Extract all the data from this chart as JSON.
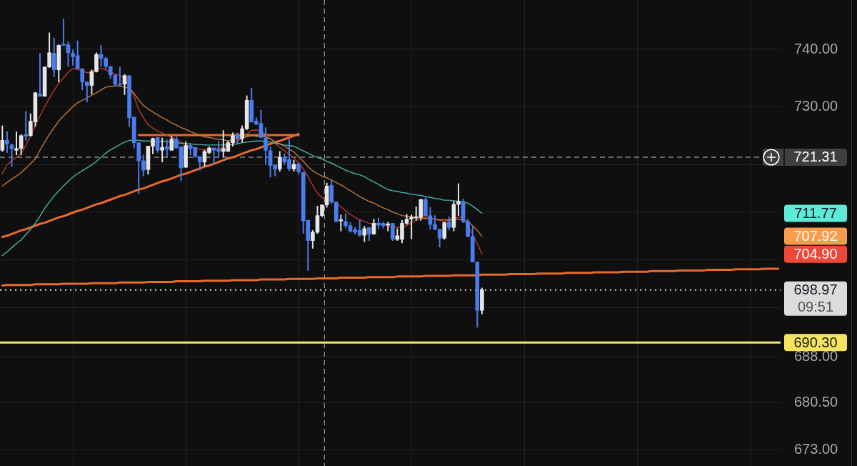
{
  "chart_data": {
    "type": "candlestick",
    "categories": [
      null,
      null,
      null,
      null,
      null,
      null,
      null,
      null,
      null,
      null,
      null,
      null,
      null,
      null,
      null,
      null,
      null,
      null,
      null,
      null,
      null,
      null,
      null,
      null,
      null,
      null,
      null,
      null,
      null,
      null,
      null,
      null,
      null,
      null,
      null,
      null,
      null,
      null,
      null,
      null,
      null,
      null,
      null,
      null,
      null,
      null,
      null,
      null,
      null,
      null,
      null,
      null,
      null,
      null,
      null,
      null,
      null,
      null,
      null,
      null,
      null,
      null,
      null,
      null,
      null,
      null,
      null,
      null,
      null,
      null,
      null,
      null,
      null,
      null,
      null,
      null,
      null,
      null,
      null,
      null,
      null,
      null,
      null,
      null,
      null,
      null,
      null,
      null,
      null,
      null,
      null,
      null,
      null,
      null,
      null,
      null,
      null,
      null,
      null,
      null,
      null,
      null,
      null,
      null,
      null,
      null,
      null,
      null,
      null,
      null,
      null,
      null,
      null,
      null,
      null,
      null,
      null,
      null,
      null,
      null,
      null,
      null,
      null,
      null,
      null,
      null,
      null,
      null,
      null,
      null,
      null,
      null,
      null,
      null,
      null,
      null,
      null,
      null,
      null,
      null,
      null,
      null,
      null,
      null,
      null,
      null,
      null,
      null,
      null,
      null,
      null,
      null,
      null,
      null,
      null,
      null,
      null,
      null,
      null,
      null,
      null,
      null,
      null,
      null,
      null,
      null
    ],
    "ohlc": [
      [
        722.5,
        726.7,
        722.3,
        724.2
      ],
      [
        724.2,
        725.7,
        722.1,
        723.6
      ],
      [
        723.4,
        723.6,
        719.7,
        722.8
      ],
      [
        722.5,
        725.7,
        721.7,
        722.8
      ],
      [
        722.8,
        725.2,
        721.7,
        725.0
      ],
      [
        725.2,
        729.2,
        724.2,
        724.9
      ],
      [
        725.0,
        728.8,
        724.9,
        727.5
      ],
      [
        727.4,
        732.5,
        726.6,
        732.4
      ],
      [
        732.2,
        739.3,
        731.8,
        731.8
      ],
      [
        731.8,
        736.9,
        731.8,
        736.9
      ],
      [
        736.9,
        742.9,
        736.8,
        739.4
      ],
      [
        739.3,
        742.0,
        735.2,
        736.4
      ],
      [
        736.4,
        740.8,
        734.3,
        740.7
      ],
      [
        740.9,
        745.3,
        740.7,
        740.7
      ],
      [
        740.8,
        741.3,
        737.0,
        739.4
      ],
      [
        739.3,
        739.9,
        737.2,
        738.7
      ],
      [
        738.9,
        741.5,
        736.6,
        736.6
      ],
      [
        736.6,
        736.6,
        732.9,
        734.3
      ],
      [
        734.3,
        734.3,
        730.8,
        733.7
      ],
      [
        733.7,
        736.4,
        732.2,
        736.1
      ],
      [
        736.1,
        739.4,
        736.0,
        739.1
      ],
      [
        739.1,
        740.7,
        737.0,
        738.4
      ],
      [
        738.4,
        738.6,
        736.6,
        737.0
      ],
      [
        737.0,
        737.0,
        734.9,
        735.5
      ],
      [
        735.5,
        735.5,
        733.6,
        733.9
      ],
      [
        733.9,
        736.9,
        733.6,
        733.8
      ],
      [
        733.9,
        735.6,
        732.1,
        735.4
      ],
      [
        735.4,
        735.4,
        726.6,
        728.1
      ],
      [
        728.2,
        728.2,
        722.9,
        723.8
      ],
      [
        723.8,
        723.8,
        715.1,
        720.7
      ],
      [
        720.7,
        721.7,
        718.1,
        719.1
      ],
      [
        719.2,
        723.2,
        718.4,
        723.2
      ],
      [
        723.2,
        724.6,
        721.9,
        724.5
      ],
      [
        724.7,
        724.7,
        722.1,
        722.5
      ],
      [
        722.5,
        724.6,
        720.5,
        723.0
      ],
      [
        723.1,
        724.3,
        721.3,
        722.7
      ],
      [
        722.5,
        724.9,
        722.5,
        724.4
      ],
      [
        724.4,
        724.9,
        722.8,
        722.9
      ],
      [
        723.1,
        723.1,
        717.3,
        719.5
      ],
      [
        719.6,
        724.0,
        719.5,
        723.3
      ],
      [
        723.3,
        723.6,
        721.7,
        722.8
      ],
      [
        723.0,
        723.0,
        721.3,
        721.5
      ],
      [
        721.4,
        721.5,
        719.1,
        720.5
      ],
      [
        720.5,
        722.5,
        719.8,
        722.3
      ],
      [
        722.1,
        723.1,
        721.9,
        722.9
      ],
      [
        722.9,
        722.9,
        720.2,
        722.5
      ],
      [
        722.6,
        724.1,
        721.3,
        722.3
      ],
      [
        722.3,
        725.9,
        721.3,
        722.8
      ],
      [
        722.3,
        724.1,
        722.3,
        723.8
      ],
      [
        723.8,
        725.5,
        723.2,
        725.0
      ],
      [
        725.1,
        725.5,
        723.6,
        724.6
      ],
      [
        724.5,
        726.7,
        723.9,
        726.2
      ],
      [
        726.2,
        731.9,
        726.0,
        731.1
      ],
      [
        731.1,
        733.2,
        727.3,
        727.4
      ],
      [
        727.5,
        728.1,
        726.9,
        727.0
      ],
      [
        727.1,
        729.4,
        724.6,
        724.7
      ],
      [
        724.6,
        726.4,
        720.1,
        722.5
      ],
      [
        722.4,
        723.1,
        717.9,
        719.9
      ],
      [
        720.0,
        720.0,
        718.1,
        719.3
      ],
      [
        719.3,
        722.3,
        718.9,
        721.3
      ],
      [
        721.3,
        721.9,
        720.1,
        720.5
      ],
      [
        720.9,
        724.4,
        719.0,
        719.4
      ],
      [
        719.3,
        720.8,
        718.9,
        720.1
      ],
      [
        720.2,
        720.3,
        718.4,
        718.8
      ],
      [
        718.7,
        718.8,
        708.4,
        710.5
      ],
      [
        710.6,
        710.6,
        702.2,
        707.2
      ],
      [
        707.2,
        708.9,
        705.9,
        708.6
      ],
      [
        708.6,
        713.0,
        708.4,
        711.4
      ],
      [
        711.4,
        713.2,
        711.2,
        713.2
      ],
      [
        713.2,
        716.9,
        712.8,
        716.4
      ],
      [
        716.5,
        717.5,
        713.4,
        713.7
      ],
      [
        713.7,
        713.7,
        710.3,
        710.4
      ],
      [
        710.5,
        711.5,
        708.8,
        710.7
      ],
      [
        710.4,
        711.7,
        709.3,
        709.7
      ],
      [
        709.7,
        710.2,
        708.6,
        708.8
      ],
      [
        709.0,
        709.4,
        708.3,
        708.6
      ],
      [
        708.9,
        710.6,
        707.9,
        708.1
      ],
      [
        708.1,
        709.6,
        707.0,
        709.2
      ],
      [
        709.4,
        709.4,
        707.2,
        708.3
      ],
      [
        708.3,
        710.8,
        708.2,
        710.1
      ],
      [
        710.1,
        711.0,
        709.2,
        709.8
      ],
      [
        710.1,
        710.3,
        709.3,
        709.7
      ],
      [
        709.8,
        710.3,
        708.8,
        710.0
      ],
      [
        710.1,
        710.1,
        707.2,
        707.4
      ],
      [
        707.4,
        709.2,
        707.2,
        708.0
      ],
      [
        707.4,
        710.6,
        706.8,
        710.1
      ],
      [
        710.1,
        711.6,
        709.9,
        710.8
      ],
      [
        710.8,
        711.5,
        707.5,
        711.1
      ],
      [
        711.0,
        712.9,
        710.6,
        711.2
      ],
      [
        711.1,
        714.2,
        710.6,
        714.1
      ],
      [
        714.1,
        714.6,
        711.3,
        711.4
      ],
      [
        711.4,
        712.8,
        709.1,
        709.9
      ],
      [
        709.9,
        711.4,
        709.0,
        709.1
      ],
      [
        709.1,
        709.1,
        706.1,
        707.6
      ],
      [
        707.6,
        710.3,
        707.4,
        710.2
      ],
      [
        710.3,
        711.2,
        709.0,
        709.4
      ],
      [
        709.4,
        713.8,
        708.8,
        713.3
      ],
      [
        713.3,
        716.8,
        711.4,
        713.8
      ],
      [
        713.8,
        714.2,
        710.2,
        710.4
      ],
      [
        710.4,
        710.8,
        707.8,
        707.9
      ],
      [
        707.9,
        709.5,
        703.6,
        703.6
      ],
      [
        703.6,
        703.6,
        692.8,
        695.6
      ],
      [
        695.6,
        699.3,
        695.0,
        698.97
      ],
      null,
      null,
      null,
      null,
      null,
      null,
      null,
      null,
      null,
      null,
      null,
      null,
      null,
      null,
      null,
      null,
      null,
      null,
      null,
      null,
      null,
      null,
      null,
      null,
      null,
      null,
      null,
      null,
      null,
      null,
      null,
      null,
      null,
      null,
      null,
      null,
      null,
      null,
      null,
      null,
      null,
      null,
      null,
      null,
      null,
      null,
      null,
      null,
      null,
      null,
      null,
      null,
      null,
      null,
      null,
      null,
      null,
      null,
      null,
      null,
      null,
      null,
      null
    ],
    "colors": [
      "#e6e6e6",
      "#4a7ef0",
      "#4a7ef0",
      "#e6e6e6",
      "#e6e6e6",
      "#4a7ef0",
      "#e6e6e6",
      "#e6e6e6",
      "#4a7ef0",
      "#e6e6e6",
      "#e6e6e6",
      "#4a7ef0",
      "#e6e6e6",
      "#4a7ef0",
      "#4a7ef0",
      "#4a7ef0",
      "#4a7ef0",
      "#4a7ef0",
      "#4a7ef0",
      "#e6e6e6",
      "#e6e6e6",
      "#4a7ef0",
      "#4a7ef0",
      "#4a7ef0",
      "#4a7ef0",
      "#4a7ef0",
      "#e6e6e6",
      "#4a7ef0",
      "#4a7ef0",
      "#4a7ef0",
      "#4a7ef0",
      "#e6e6e6",
      "#e6e6e6",
      "#4a7ef0",
      "#e6e6e6",
      "#4a7ef0",
      "#e6e6e6",
      "#4a7ef0",
      "#4a7ef0",
      "#e6e6e6",
      "#4a7ef0",
      "#4a7ef0",
      "#4a7ef0",
      "#e6e6e6",
      "#e6e6e6",
      "#4a7ef0",
      "#4a7ef0",
      "#e6e6e6",
      "#e6e6e6",
      "#e6e6e6",
      "#4a7ef0",
      "#e6e6e6",
      "#e6e6e6",
      "#4a7ef0",
      "#4a7ef0",
      "#4a7ef0",
      "#4a7ef0",
      "#4a7ef0",
      "#4a7ef0",
      "#e6e6e6",
      "#4a7ef0",
      "#4a7ef0",
      "#e6e6e6",
      "#4a7ef0",
      "#4a7ef0",
      "#4a7ef0",
      "#e6e6e6",
      "#e6e6e6",
      "#e6e6e6",
      "#e6e6e6",
      "#4a7ef0",
      "#4a7ef0",
      "#e6e6e6",
      "#4a7ef0",
      "#4a7ef0",
      "#4a7ef0",
      "#4a7ef0",
      "#e6e6e6",
      "#4a7ef0",
      "#e6e6e6",
      "#4a7ef0",
      "#4a7ef0",
      "#e6e6e6",
      "#4a7ef0",
      "#e6e6e6",
      "#e6e6e6",
      "#e6e6e6",
      "#e6e6e6",
      "#e6e6e6",
      "#e6e6e6",
      "#4a7ef0",
      "#4a7ef0",
      "#4a7ef0",
      "#4a7ef0",
      "#e6e6e6",
      "#4a7ef0",
      "#e6e6e6",
      "#e6e6e6",
      "#4a7ef0",
      "#4a7ef0",
      "#4a7ef0",
      "#4a7ef0",
      "#e6e6e6",
      null,
      null,
      null,
      null,
      null,
      null,
      null,
      null,
      null,
      null,
      null,
      null,
      null,
      null,
      null,
      null,
      null,
      null,
      null,
      null,
      null,
      null,
      null,
      null,
      null,
      null,
      null,
      null,
      null,
      null,
      null,
      null,
      null,
      null,
      null,
      null,
      null,
      null,
      null,
      null,
      null,
      null,
      null,
      null,
      null,
      null,
      null,
      null,
      null,
      null,
      null,
      null,
      null,
      null,
      null,
      null,
      null,
      null,
      null,
      null,
      null,
      null,
      null
    ],
    "series": [
      {
        "type": "line",
        "color": "#48b4a6",
        "values": [
          704.7,
          705.3,
          706.0,
          706.7,
          707.3,
          708.2,
          709.1,
          710.1,
          711.3,
          712.6,
          713.7,
          714.7,
          715.6,
          716.4,
          717.2,
          717.9,
          718.5,
          719.0,
          719.5,
          720.0,
          720.6,
          721.3,
          722.0,
          722.6,
          723.0,
          723.5,
          723.9,
          724.2,
          724.2,
          724.2,
          724.1,
          724.1,
          724.0,
          724.0,
          724.0,
          724.0,
          723.9,
          723.8,
          723.7,
          723.6,
          723.6,
          723.5,
          723.5,
          723.4,
          723.4,
          723.4,
          723.4,
          723.4,
          723.4,
          723.5,
          723.6,
          723.8,
          723.9,
          724.0,
          724.1,
          724.1,
          724.0,
          723.9,
          723.7,
          723.6,
          723.4,
          723.3,
          723.2,
          722.8,
          722.4,
          722.0,
          721.6,
          721.3,
          721.0,
          720.6,
          720.3,
          719.9,
          719.5,
          719.1,
          718.8,
          718.5,
          718.3,
          718.0,
          717.5,
          717.1,
          716.7,
          716.2,
          715.8,
          715.6,
          715.5,
          715.3,
          715.2,
          715.0,
          714.9,
          714.8,
          714.6,
          714.5,
          714.3,
          714.2,
          714.0,
          714.0,
          713.9,
          713.8,
          713.7,
          713.5,
          713.0,
          712.4,
          711.77,
          null,
          null,
          null,
          null,
          null,
          null,
          null,
          null,
          null,
          null,
          null,
          null,
          null,
          null,
          null,
          null,
          null,
          null,
          null,
          null,
          null,
          null,
          null,
          null,
          null,
          null,
          null,
          null,
          null,
          null,
          null,
          null,
          null,
          null,
          null,
          null,
          null,
          null,
          null,
          null,
          null,
          null,
          null,
          null,
          null,
          null,
          null,
          null,
          null,
          null,
          null,
          null,
          null,
          null,
          null,
          null,
          null,
          null,
          null,
          null,
          null,
          null,
          null
        ]
      },
      {
        "type": "line",
        "color": "#c0783a",
        "values": [
          716.4,
          717.0,
          717.6,
          718.1,
          718.7,
          719.4,
          720.2,
          721.0,
          722.5,
          723.9,
          725.2,
          726.4,
          727.5,
          728.4,
          729.2,
          730.0,
          730.7,
          731.1,
          731.5,
          732.0,
          732.4,
          732.9,
          733.4,
          733.5,
          733.6,
          733.6,
          733.4,
          733.3,
          732.3,
          731.2,
          730.2,
          729.6,
          729.1,
          728.6,
          728.1,
          727.7,
          727.2,
          726.8,
          726.4,
          726.1,
          725.7,
          725.4,
          725.1,
          724.8,
          724.7,
          724.5,
          724.4,
          724.3,
          724.1,
          724.3,
          724.5,
          724.7,
          724.8,
          725.0,
          724.9,
          724.9,
          724.8,
          724.4,
          724.0,
          723.6,
          723.2,
          722.7,
          722.2,
          721.4,
          720.6,
          719.7,
          719.0,
          718.5,
          718.1,
          717.8,
          717.4,
          717.0,
          716.6,
          716.1,
          715.6,
          715.1,
          714.6,
          714.2,
          713.8,
          713.5,
          713.1,
          712.7,
          712.4,
          712.0,
          711.7,
          711.4,
          711.3,
          711.2,
          711.1,
          711.0,
          710.9,
          710.9,
          710.8,
          710.7,
          710.7,
          710.6,
          710.7,
          710.8,
          710.6,
          710.4,
          709.7,
          708.9,
          707.92,
          null,
          null,
          null,
          null,
          null,
          null,
          null,
          null,
          null,
          null,
          null,
          null,
          null,
          null,
          null,
          null,
          null,
          null,
          null,
          null,
          null,
          null,
          null,
          null,
          null,
          null,
          null,
          null,
          null,
          null,
          null,
          null,
          null,
          null,
          null,
          null,
          null,
          null,
          null,
          null,
          null,
          null,
          null,
          null,
          null,
          null,
          null,
          null,
          null,
          null,
          null,
          null,
          null,
          null,
          null,
          null,
          null,
          null,
          null,
          null,
          null,
          null,
          null
        ]
      },
      {
        "type": "line",
        "color": "#b8372b",
        "values": [
          718.5,
          720.0,
          720.7,
          721.3,
          721.9,
          723.3,
          725.0,
          726.7,
          728.4,
          730.0,
          731.5,
          732.8,
          734.1,
          735.0,
          736.0,
          736.6,
          736.5,
          736.2,
          735.9,
          736.0,
          736.6,
          736.7,
          736.4,
          736.0,
          735.7,
          735.4,
          735.0,
          null,
          731.8,
          729.5,
          728.1,
          726.9,
          726.3,
          725.8,
          725.5,
          725.1,
          724.7,
          724.3,
          723.9,
          723.5,
          723.1,
          722.8,
          722.7,
          722.6,
          722.6,
          722.7,
          722.8,
          723.0,
          723.1,
          723.6,
          724.1,
          724.6,
          725.3,
          725.9,
          726.0,
          725.7,
          725.3,
          724.5,
          723.7,
          723.0,
          722.4,
          721.8,
          721.2,
          720.3,
          719.3,
          718.0,
          716.5,
          715.2,
          714.4,
          714.2,
          713.9,
          713.4,
          712.9,
          712.2,
          711.6,
          711.1,
          710.7,
          710.4,
          710.1,
          710.0,
          710.0,
          709.9,
          709.7,
          709.5,
          709.4,
          709.4,
          709.7,
          710.2,
          710.6,
          710.9,
          711.2,
          711.0,
          710.8,
          710.6,
          710.4,
          710.7,
          711.0,
          711.1,
          711.2,
          null,
          708.2,
          706.7,
          704.9,
          null,
          null,
          null,
          null,
          null,
          null,
          null,
          null,
          null,
          null,
          null,
          null,
          null,
          null,
          null,
          null,
          null,
          null,
          null,
          null,
          null,
          null,
          null,
          null,
          null,
          null,
          null,
          null,
          null,
          null,
          null,
          null,
          null,
          null,
          null,
          null,
          null,
          null,
          null,
          null,
          null,
          null,
          null,
          null,
          null,
          null,
          null,
          null,
          null,
          null,
          null,
          null,
          null,
          null,
          null,
          null,
          null,
          null,
          null,
          null,
          null,
          null,
          null
        ]
      },
      {
        "type": "line",
        "color": "#e8692c",
        "values": [
          null,
          null,
          null,
          null,
          null,
          null,
          null,
          null,
          null,
          null,
          null,
          null,
          null,
          null,
          null,
          null,
          null,
          null,
          null,
          null,
          null,
          null,
          null,
          null,
          null,
          null,
          null,
          null,
          null,
          725.1,
          725.1,
          725.1,
          725.1,
          725.1,
          725.1,
          725.1,
          725.1,
          725.1,
          725.1,
          725.1,
          725.1,
          725.1,
          725.1,
          725.1,
          725.1,
          725.1,
          725.1,
          725.1,
          725.1,
          725.1,
          725.1,
          725.1,
          725.1,
          725.1,
          725.1,
          725.1,
          725.1,
          725.1,
          725.1,
          725.1,
          725.1,
          725.1,
          725.1,
          725.1,
          null,
          null,
          null,
          null,
          null,
          null,
          null,
          null,
          null,
          null,
          null,
          null,
          null,
          null,
          null,
          null,
          null,
          null,
          null,
          null,
          null,
          null,
          null,
          null,
          null,
          null,
          null,
          null,
          null,
          null,
          null,
          null,
          null,
          null,
          null,
          null,
          null,
          null,
          null,
          null,
          null,
          null,
          null,
          null,
          null,
          null,
          null,
          null,
          null,
          null,
          null,
          null,
          null,
          null,
          null,
          null,
          null,
          null,
          null,
          null,
          null,
          null,
          null,
          null,
          null,
          null,
          null,
          null,
          null,
          null,
          null,
          null,
          null,
          null,
          null,
          null,
          null,
          null,
          null,
          null,
          null,
          null,
          null,
          null,
          null,
          null,
          null,
          null,
          null,
          null,
          null,
          null,
          null,
          null,
          null,
          null,
          null,
          null,
          null,
          null,
          null,
          null
        ]
      },
      {
        "type": "line",
        "color": "#e8692c",
        "values": [
          707.8,
          708.0,
          708.3,
          708.6,
          708.9,
          709.1,
          709.4,
          709.7,
          710.0,
          710.2,
          710.5,
          710.8,
          711.1,
          711.3,
          711.6,
          711.9,
          712.2,
          712.4,
          712.7,
          713.0,
          713.3,
          713.5,
          713.8,
          714.1,
          714.4,
          714.7,
          714.9,
          715.2,
          715.5,
          715.8,
          716.0,
          716.3,
          716.6,
          716.9,
          717.2,
          717.4,
          717.7,
          718.0,
          718.3,
          718.5,
          718.8,
          719.1,
          719.4,
          719.7,
          719.9,
          720.2,
          720.5,
          720.8,
          721.1,
          721.3,
          721.6,
          721.9,
          722.2,
          722.5,
          722.7,
          723.0,
          723.3,
          723.6,
          723.9,
          724.1,
          724.4,
          724.7,
          725.0,
          725.3,
          null,
          null,
          null,
          null,
          null,
          null,
          null,
          null,
          null,
          null,
          null,
          null,
          null,
          null,
          null,
          null,
          null,
          null,
          null,
          null,
          null,
          null,
          null,
          null,
          null,
          null,
          null,
          null,
          null,
          null,
          null,
          null,
          null,
          null,
          null,
          null,
          null,
          null,
          null,
          null,
          null,
          null,
          null,
          null,
          null,
          null,
          null,
          null,
          null,
          null,
          null,
          null,
          null,
          null,
          null,
          null,
          null,
          null,
          null,
          null,
          null,
          null,
          null,
          null,
          null,
          null,
          null,
          null,
          null,
          null,
          null,
          null,
          null,
          null,
          null,
          null,
          null,
          null,
          null,
          null,
          null,
          null,
          null,
          null,
          null,
          null,
          null,
          null,
          null,
          null,
          null,
          null,
          null,
          null,
          null,
          null,
          null,
          null,
          null,
          null,
          null,
          null
        ]
      },
      {
        "type": "line",
        "color": "#e8692c",
        "values": [
          699.7,
          699.8,
          699.8,
          699.8,
          699.8,
          699.8,
          699.8,
          699.9,
          699.9,
          699.9,
          699.9,
          699.9,
          699.9,
          700.0,
          700.0,
          700.0,
          700.0,
          700.0,
          700.0,
          700.1,
          700.1,
          700.1,
          700.1,
          700.1,
          700.1,
          700.2,
          700.2,
          700.2,
          700.2,
          700.2,
          700.2,
          700.3,
          700.3,
          700.3,
          700.3,
          700.3,
          700.3,
          700.4,
          700.4,
          700.4,
          700.4,
          700.4,
          700.4,
          700.5,
          700.5,
          700.5,
          700.5,
          700.5,
          700.5,
          700.6,
          700.6,
          700.6,
          700.6,
          700.6,
          700.6,
          700.7,
          700.7,
          700.7,
          700.7,
          700.7,
          700.7,
          700.8,
          700.8,
          700.8,
          700.8,
          700.8,
          700.8,
          700.9,
          700.9,
          700.9,
          700.9,
          700.9,
          701.0,
          701.0,
          701.0,
          701.0,
          701.0,
          701.0,
          701.1,
          701.1,
          701.1,
          701.1,
          701.1,
          701.1,
          701.2,
          701.2,
          701.2,
          701.2,
          701.2,
          701.2,
          701.3,
          701.3,
          701.3,
          701.3,
          701.3,
          701.3,
          701.4,
          701.4,
          701.4,
          701.4,
          701.4,
          701.4,
          701.5,
          701.5,
          701.5,
          701.5,
          701.5,
          701.5,
          701.6,
          701.6,
          701.6,
          701.6,
          701.6,
          701.6,
          701.7,
          701.7,
          701.7,
          701.7,
          701.7,
          701.7,
          701.8,
          701.8,
          701.8,
          701.8,
          701.8,
          701.8,
          701.9,
          701.9,
          701.9,
          701.9,
          701.9,
          701.9,
          702.0,
          702.0,
          702.0,
          702.0,
          702.0,
          702.0,
          702.1,
          702.1,
          702.1,
          702.1,
          702.1,
          702.1,
          702.2,
          702.2,
          702.2,
          702.2,
          702.2,
          702.2,
          702.3,
          702.3,
          702.3,
          702.3,
          702.3,
          702.3,
          702.4,
          702.4,
          702.4,
          702.4,
          702.4,
          702.4,
          702.5,
          702.5,
          702.5,
          702.5
        ]
      }
    ],
    "log": true,
    "ylim": [
      670.4,
      748.7
    ],
    "yticks": [
      {
        "value": 673,
        "label": "673.00"
      },
      {
        "value": 680.5,
        "label": "680.50"
      },
      {
        "value": 688,
        "label": "688.00"
      },
      {
        "value": 696,
        "label": null
      },
      {
        "value": 704,
        "label": null
      },
      {
        "value": 712,
        "label": null
      },
      {
        "value": 720,
        "label": null
      },
      {
        "value": 730,
        "label": "730.00"
      },
      {
        "value": 740,
        "label": "740.00"
      }
    ],
    "grid": true,
    "tick_labels": "y",
    "ref_lines": [
      {
        "axis": "y",
        "value": 721.31,
        "label": "721.31",
        "line_style": "dashed",
        "color": "#8c8c8c"
      },
      {
        "axis": "y",
        "value": 698.97,
        "label": "698.97",
        "line_style": "dotted",
        "color": "#dcdcdc"
      },
      {
        "axis": "y",
        "value": 690.3,
        "label": "690.30",
        "color": "#f6e45e"
      }
    ],
    "annotations": [
      "711.77",
      "707.92",
      "704.90",
      "09:51"
    ]
  }
}
